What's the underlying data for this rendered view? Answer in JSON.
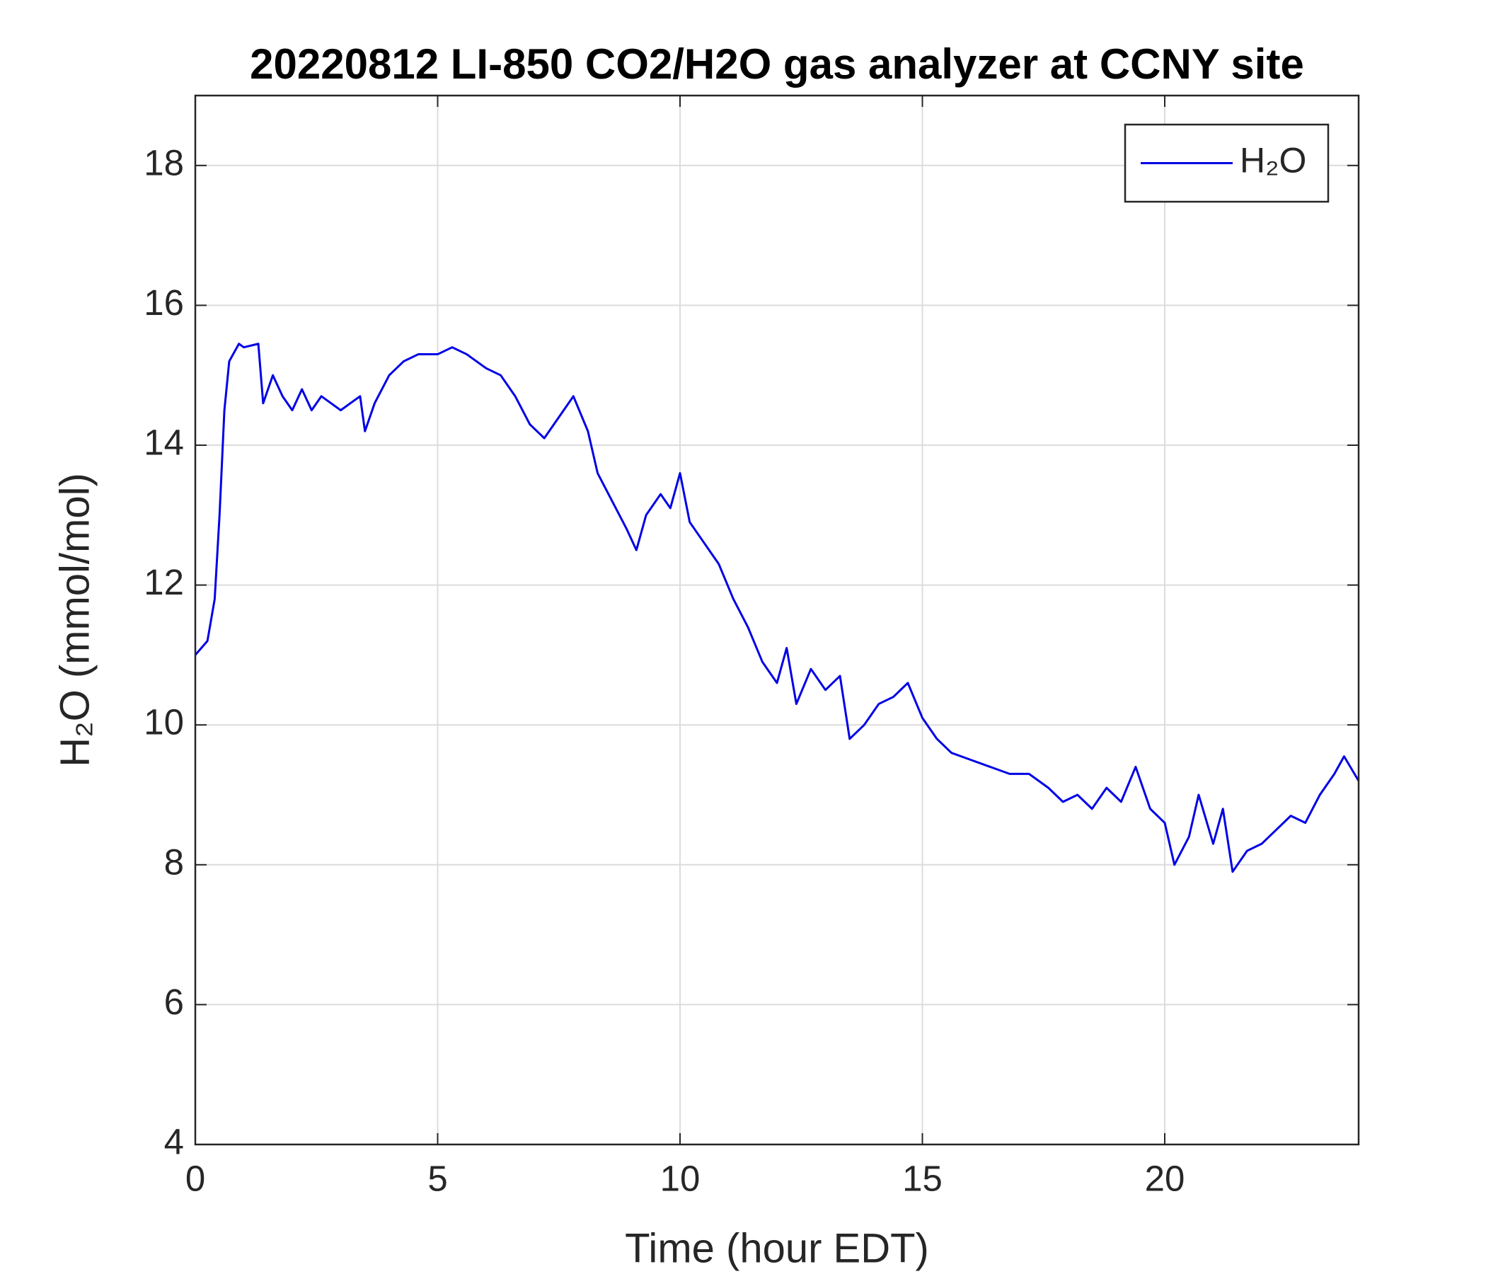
{
  "chart_data": {
    "type": "line",
    "title": "20220812 LI-850 CO2/H2O gas analyzer at CCNY site",
    "x_label": "Time (hour EDT)",
    "y_label": "H₂O (mmol/mol)",
    "x": [
      0,
      0.25,
      0.4,
      0.5,
      0.6,
      0.7,
      0.9,
      1.0,
      1.3,
      1.4,
      1.6,
      1.8,
      2.0,
      2.2,
      2.4,
      2.6,
      2.8,
      3.0,
      3.2,
      3.4,
      3.5,
      3.7,
      4.0,
      4.3,
      4.6,
      5.0,
      5.3,
      5.6,
      6.0,
      6.3,
      6.6,
      6.9,
      7.2,
      7.5,
      7.8,
      8.1,
      8.3,
      8.6,
      8.9,
      9.1,
      9.3,
      9.6,
      9.8,
      10.0,
      10.2,
      10.5,
      10.8,
      11.1,
      11.4,
      11.7,
      12.0,
      12.2,
      12.4,
      12.7,
      13.0,
      13.3,
      13.5,
      13.8,
      14.1,
      14.4,
      14.7,
      15.0,
      15.3,
      15.6,
      16.0,
      16.4,
      16.8,
      17.2,
      17.6,
      17.9,
      18.2,
      18.5,
      18.8,
      19.1,
      19.4,
      19.7,
      20.0,
      20.2,
      20.5,
      20.7,
      21.0,
      21.2,
      21.4,
      21.7,
      22.0,
      22.3,
      22.6,
      22.9,
      23.2,
      23.5,
      23.7,
      24.0
    ],
    "series": [
      {
        "name": "H₂O",
        "color": "#0000e6",
        "values": [
          11.0,
          11.2,
          11.8,
          13.0,
          14.5,
          15.2,
          15.45,
          15.4,
          15.45,
          14.6,
          15.0,
          14.7,
          14.5,
          14.8,
          14.5,
          14.7,
          14.6,
          14.5,
          14.6,
          14.7,
          14.2,
          14.6,
          15.0,
          15.2,
          15.3,
          15.3,
          15.4,
          15.3,
          15.1,
          15.0,
          14.7,
          14.3,
          14.1,
          14.4,
          14.7,
          14.2,
          13.6,
          13.2,
          12.8,
          12.5,
          13.0,
          13.3,
          13.1,
          13.6,
          12.9,
          12.6,
          12.3,
          11.8,
          11.4,
          10.9,
          10.6,
          11.1,
          10.3,
          10.8,
          10.5,
          10.7,
          9.8,
          10.0,
          10.3,
          10.4,
          10.6,
          10.1,
          9.8,
          9.6,
          9.5,
          9.4,
          9.3,
          9.3,
          9.1,
          8.9,
          9.0,
          8.8,
          9.1,
          8.9,
          9.4,
          8.8,
          8.6,
          8.0,
          8.4,
          9.0,
          8.3,
          8.8,
          7.9,
          8.2,
          8.3,
          8.5,
          8.7,
          8.6,
          9.0,
          9.3,
          9.55,
          9.2
        ]
      }
    ],
    "xlim": [
      0,
      24
    ],
    "xticks": [
      0,
      5,
      10,
      15,
      20
    ],
    "ylim": [
      4,
      19
    ],
    "yticks": [
      4,
      6,
      8,
      10,
      12,
      14,
      16,
      18
    ],
    "grid": true,
    "legend": "upper right"
  }
}
